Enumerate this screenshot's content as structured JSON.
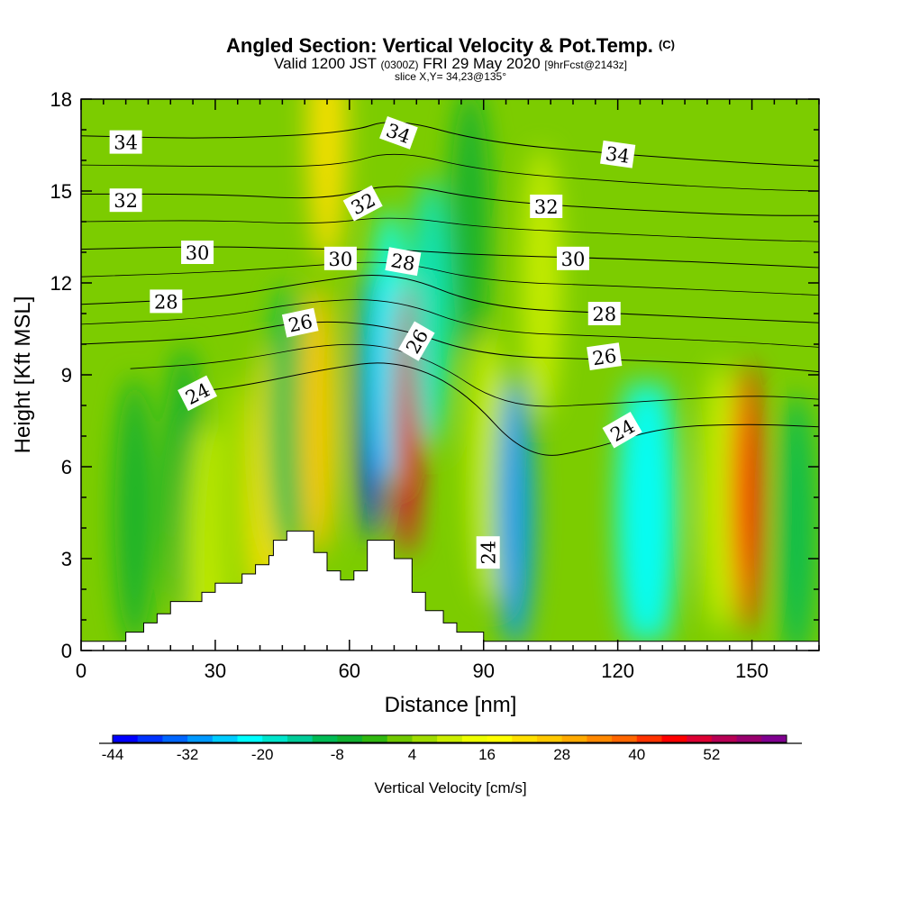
{
  "chart_data": {
    "type": "heatmap",
    "title": "Angled Section: Vertical Velocity & Pot.Temp.",
    "title_suffix": "(C)",
    "subtitle": {
      "valid": "Valid 1200 JST",
      "utc": "(0300Z)",
      "date": "FRI 29 May 2020",
      "fcst": "[9hrFcst@2143z]"
    },
    "slice": "slice X,Y= 34,23@135°",
    "xlabel": "Distance [nm]",
    "ylabel": "Height [Kft MSL]",
    "xlim": [
      0,
      165
    ],
    "ylim": [
      0,
      18
    ],
    "x_ticks": [
      "0",
      "30",
      "60",
      "90",
      "120",
      "150"
    ],
    "y_ticks": [
      "0",
      "3",
      "6",
      "9",
      "12",
      "15",
      "18"
    ],
    "terrain_kft": [
      [
        0,
        0.3
      ],
      [
        10,
        0.3
      ],
      [
        10,
        0.6
      ],
      [
        14,
        0.6
      ],
      [
        14,
        0.9
      ],
      [
        17,
        0.9
      ],
      [
        17,
        1.2
      ],
      [
        20,
        1.2
      ],
      [
        20,
        1.6
      ],
      [
        27,
        1.6
      ],
      [
        27,
        1.9
      ],
      [
        30,
        1.9
      ],
      [
        30,
        2.2
      ],
      [
        36,
        2.2
      ],
      [
        36,
        2.5
      ],
      [
        39,
        2.5
      ],
      [
        39,
        2.8
      ],
      [
        42,
        2.8
      ],
      [
        42,
        3.1
      ],
      [
        43,
        3.1
      ],
      [
        43,
        3.6
      ],
      [
        46,
        3.6
      ],
      [
        46,
        3.9
      ],
      [
        52,
        3.9
      ],
      [
        52,
        3.2
      ],
      [
        55,
        3.2
      ],
      [
        55,
        2.6
      ],
      [
        58,
        2.6
      ],
      [
        58,
        2.3
      ],
      [
        61,
        2.3
      ],
      [
        61,
        2.6
      ],
      [
        64,
        2.6
      ],
      [
        64,
        3.6
      ],
      [
        70,
        3.6
      ],
      [
        70,
        3.0
      ],
      [
        74,
        3.0
      ],
      [
        74,
        1.9
      ],
      [
        77,
        1.9
      ],
      [
        77,
        1.3
      ],
      [
        81,
        1.3
      ],
      [
        81,
        0.9
      ],
      [
        84,
        0.9
      ],
      [
        84,
        0.6
      ],
      [
        90,
        0.6
      ],
      [
        90,
        0.3
      ],
      [
        165,
        0.3
      ]
    ],
    "vertical_velocity_cells": [
      {
        "x": 12,
        "y": 4.5,
        "value": -8
      },
      {
        "x": 23,
        "y": 5.5,
        "value": -8
      },
      {
        "x": 28,
        "y": 3.0,
        "value": 8
      },
      {
        "x": 34,
        "y": 4.5,
        "value": 4
      },
      {
        "x": 42,
        "y": 5.5,
        "value": 20
      },
      {
        "x": 46,
        "y": 7.5,
        "value": -10
      },
      {
        "x": 53,
        "y": 7.5,
        "value": 24
      },
      {
        "x": 55,
        "y": 17.0,
        "value": 20
      },
      {
        "x": 65,
        "y": 8.0,
        "value": -38
      },
      {
        "x": 69,
        "y": 10.0,
        "value": -24
      },
      {
        "x": 73,
        "y": 7.5,
        "value": 50
      },
      {
        "x": 78,
        "y": 11.0,
        "value": -20
      },
      {
        "x": 87,
        "y": 14.0,
        "value": -8
      },
      {
        "x": 91,
        "y": 6.0,
        "value": 8
      },
      {
        "x": 97,
        "y": 4.5,
        "value": -30
      },
      {
        "x": 103,
        "y": 12.0,
        "value": 8
      },
      {
        "x": 124,
        "y": 4.5,
        "value": -22
      },
      {
        "x": 129,
        "y": 4.5,
        "value": -22
      },
      {
        "x": 143,
        "y": 5.0,
        "value": 8
      },
      {
        "x": 149,
        "y": 5.0,
        "value": 44
      },
      {
        "x": 160,
        "y": 4.0,
        "value": -10
      }
    ],
    "pot_temp_isentropes": [
      {
        "label": "24",
        "points": [
          [
            22,
            8.4
          ],
          [
            35,
            8.6
          ],
          [
            55,
            9.2
          ],
          [
            70,
            9.5
          ],
          [
            85,
            8.6
          ],
          [
            100,
            6.2
          ],
          [
            115,
            6.6
          ],
          [
            130,
            7.3
          ],
          [
            150,
            7.4
          ],
          [
            165,
            7.3
          ]
        ]
      },
      {
        "label": "26",
        "points": [
          [
            0,
            10.0
          ],
          [
            30,
            10.2
          ],
          [
            50,
            10.8
          ],
          [
            70,
            10.6
          ],
          [
            90,
            9.6
          ],
          [
            120,
            9.5
          ],
          [
            150,
            9.3
          ],
          [
            165,
            9.1
          ]
        ]
      },
      {
        "label": "28",
        "points": [
          [
            0,
            11.3
          ],
          [
            30,
            11.5
          ],
          [
            50,
            12.0
          ],
          [
            70,
            12.4
          ],
          [
            90,
            11.2
          ],
          [
            120,
            11.0
          ],
          [
            150,
            10.8
          ],
          [
            165,
            10.7
          ]
        ]
      },
      {
        "label": "30",
        "points": [
          [
            0,
            13.1
          ],
          [
            30,
            13.2
          ],
          [
            50,
            13.1
          ],
          [
            70,
            13.1
          ],
          [
            90,
            12.9
          ],
          [
            120,
            12.8
          ],
          [
            150,
            12.6
          ],
          [
            165,
            12.5
          ]
        ]
      },
      {
        "label": "32",
        "points": [
          [
            0,
            14.9
          ],
          [
            30,
            14.9
          ],
          [
            55,
            14.7
          ],
          [
            70,
            15.3
          ],
          [
            90,
            14.7
          ],
          [
            120,
            14.4
          ],
          [
            150,
            14.2
          ],
          [
            165,
            14.2
          ]
        ]
      },
      {
        "label": "34",
        "points": [
          [
            0,
            16.8
          ],
          [
            30,
            16.7
          ],
          [
            60,
            16.9
          ],
          [
            70,
            17.4
          ],
          [
            90,
            16.6
          ],
          [
            120,
            16.2
          ],
          [
            150,
            15.9
          ],
          [
            165,
            15.8
          ]
        ]
      }
    ],
    "contour_labels": [
      {
        "text": "34",
        "x": 10,
        "y": 16.6,
        "angle": 0
      },
      {
        "text": "32",
        "x": 10,
        "y": 14.7,
        "angle": 0
      },
      {
        "text": "30",
        "x": 26,
        "y": 13.0,
        "angle": 0
      },
      {
        "text": "28",
        "x": 19,
        "y": 11.4,
        "angle": 0
      },
      {
        "text": "24",
        "x": 26,
        "y": 8.4,
        "angle": -27
      },
      {
        "text": "26",
        "x": 49,
        "y": 10.7,
        "angle": -12
      },
      {
        "text": "30",
        "x": 58,
        "y": 12.8,
        "angle": 0
      },
      {
        "text": "32",
        "x": 63,
        "y": 14.6,
        "angle": -28
      },
      {
        "text": "34",
        "x": 71,
        "y": 16.9,
        "angle": 20
      },
      {
        "text": "28",
        "x": 72,
        "y": 12.7,
        "angle": 10
      },
      {
        "text": "26",
        "x": 75,
        "y": 10.1,
        "angle": -60
      },
      {
        "text": "32",
        "x": 104,
        "y": 14.5,
        "angle": 0
      },
      {
        "text": "30",
        "x": 110,
        "y": 12.8,
        "angle": 0
      },
      {
        "text": "28",
        "x": 117,
        "y": 11.0,
        "angle": 0
      },
      {
        "text": "34",
        "x": 120,
        "y": 16.2,
        "angle": 8
      },
      {
        "text": "26",
        "x": 117,
        "y": 9.6,
        "angle": -8
      },
      {
        "text": "24",
        "x": 121,
        "y": 7.2,
        "angle": -30
      },
      {
        "text": "24",
        "x": 91,
        "y": 3.2,
        "angle": -90
      }
    ],
    "colorbar": {
      "label": "Vertical Velocity [cm/s]",
      "min": -44,
      "step": 4,
      "tick_labels": [
        "-44",
        "-32",
        "-20",
        "-8",
        "4",
        "16",
        "28",
        "40",
        "52"
      ],
      "colors": [
        "#0000ff",
        "#0033ff",
        "#0066ff",
        "#0099ff",
        "#00ccff",
        "#00ffff",
        "#00e5cc",
        "#00cc99",
        "#00bb55",
        "#10b030",
        "#30b810",
        "#70c800",
        "#a0dc00",
        "#ccee00",
        "#eeff00",
        "#ffff00",
        "#ffe000",
        "#ffc800",
        "#ffaa00",
        "#ff8800",
        "#ff6600",
        "#ff3300",
        "#ff0000",
        "#dd0033",
        "#b80055",
        "#99006e",
        "#800090"
      ]
    }
  }
}
